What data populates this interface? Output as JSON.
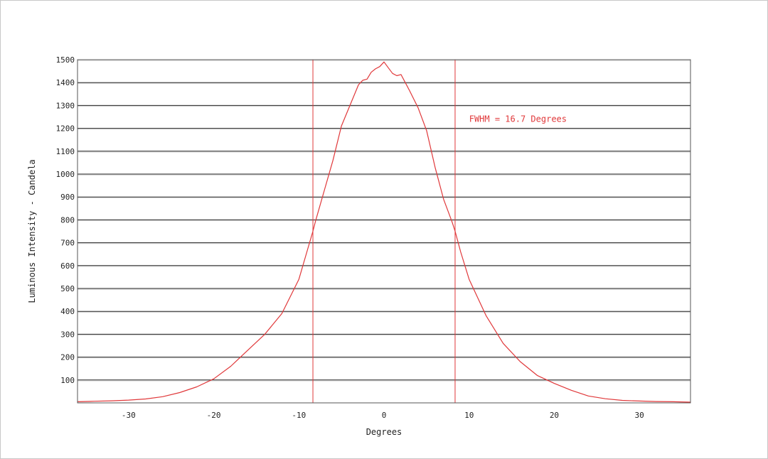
{
  "chart_data": {
    "type": "line",
    "title": "",
    "xlabel": "Degrees",
    "ylabel": "Luminous Intensity - Candela",
    "xlim": [
      -36,
      36
    ],
    "ylim": [
      0,
      1500
    ],
    "x_ticks": [
      -30,
      -20,
      -10,
      0,
      10,
      20,
      30
    ],
    "y_ticks": [
      100,
      200,
      300,
      400,
      500,
      600,
      700,
      800,
      900,
      1000,
      1100,
      1200,
      1300,
      1400,
      1500
    ],
    "grid": "horizontal",
    "legend": "none",
    "colors": {
      "series": "#e0383a",
      "grid": "#222222",
      "frame": "#555555"
    },
    "vertical_markers": [
      -8.35,
      8.35
    ],
    "annotation": {
      "text": "FWHM = 16.7 Degrees",
      "x": 10,
      "y": 1240
    },
    "series": [
      {
        "x": [
          -36,
          -34,
          -32,
          -30,
          -28,
          -26,
          -24,
          -22,
          -20,
          -18,
          -16,
          -14,
          -12,
          -10,
          -8.35,
          -8,
          -7,
          -6,
          -5,
          -4,
          -3,
          -2.5,
          -2,
          -1.5,
          -1,
          -0.5,
          0,
          0.5,
          1,
          1.5,
          2,
          2.5,
          3,
          4,
          5,
          6,
          7,
          8,
          8.35,
          9,
          10,
          12,
          14,
          16,
          18,
          20,
          22,
          24,
          26,
          28,
          30,
          32,
          34,
          36
        ],
        "y": [
          5,
          7,
          9,
          12,
          17,
          27,
          45,
          70,
          105,
          160,
          230,
          300,
          390,
          540,
          750,
          800,
          930,
          1060,
          1210,
          1300,
          1390,
          1410,
          1415,
          1445,
          1460,
          1470,
          1490,
          1465,
          1440,
          1430,
          1435,
          1400,
          1365,
          1290,
          1190,
          1030,
          890,
          790,
          750,
          660,
          540,
          380,
          260,
          180,
          120,
          85,
          55,
          30,
          18,
          11,
          8,
          6,
          5,
          3
        ]
      }
    ]
  }
}
